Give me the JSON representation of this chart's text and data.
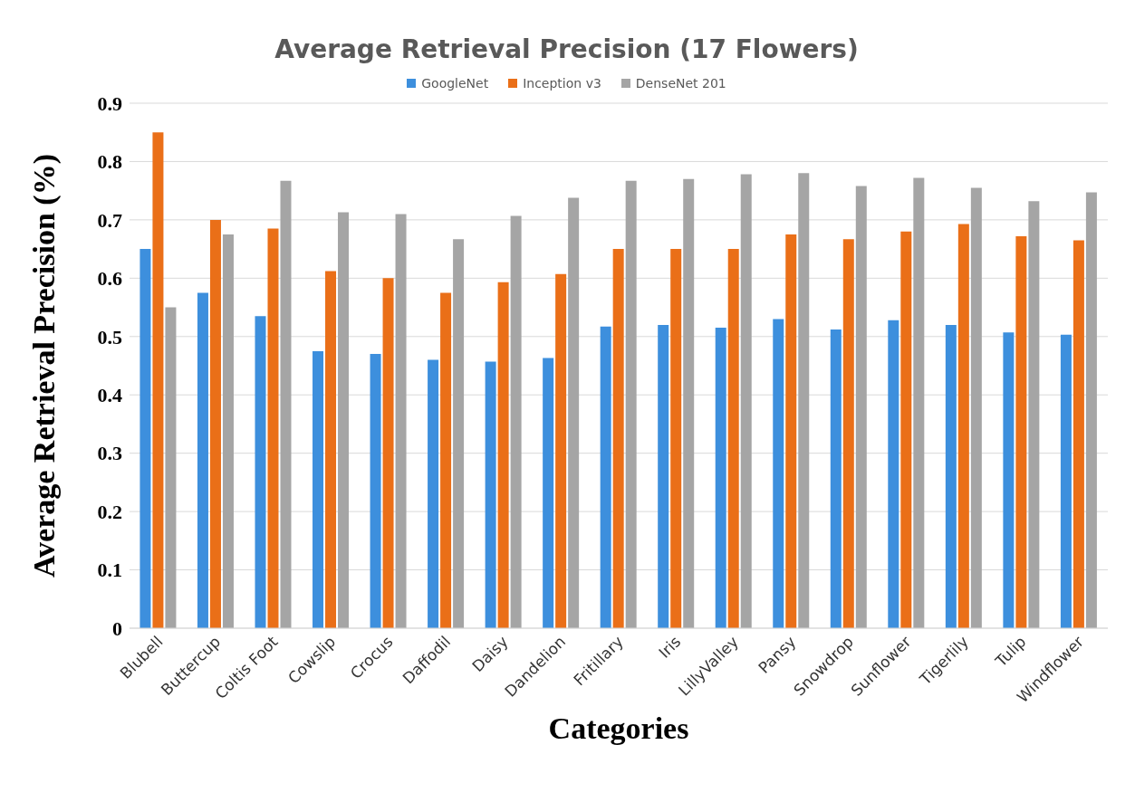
{
  "chart_data": {
    "type": "bar",
    "title": "Average Retrieval Precision (17 Flowers)",
    "xlabel": "Categories",
    "ylabel": "Average Retrieval Precision (%)",
    "categories": [
      "Blubell",
      "Buttercup",
      "Coltis Foot",
      "Cowslip",
      "Crocus",
      "Daffodil",
      "Daisy",
      "Dandelion",
      "Fritillary",
      "Iris",
      "LillyValley",
      "Pansy",
      "Snowdrop",
      "Sunflower",
      "Tigerlily",
      "Tulip",
      "Windflower"
    ],
    "series": [
      {
        "name": "GoogleNet",
        "color": "#3d8fdd",
        "values": [
          0.65,
          0.575,
          0.535,
          0.475,
          0.47,
          0.46,
          0.457,
          0.463,
          0.517,
          0.52,
          0.515,
          0.53,
          0.512,
          0.528,
          0.52,
          0.507,
          0.503
        ]
      },
      {
        "name": "Inception v3",
        "color": "#ea6f18",
        "values": [
          0.85,
          0.7,
          0.685,
          0.612,
          0.6,
          0.575,
          0.593,
          0.607,
          0.65,
          0.65,
          0.65,
          0.675,
          0.667,
          0.68,
          0.693,
          0.672,
          0.665
        ]
      },
      {
        "name": "DenseNet 201",
        "color": "#a5a5a5",
        "values": [
          0.55,
          0.675,
          0.767,
          0.713,
          0.71,
          0.667,
          0.707,
          0.738,
          0.767,
          0.77,
          0.778,
          0.78,
          0.758,
          0.772,
          0.755,
          0.732,
          0.747
        ]
      }
    ],
    "ylim": [
      0,
      0.9
    ],
    "yticks": [
      0,
      0.1,
      0.2,
      0.3,
      0.4,
      0.5,
      0.6,
      0.7,
      0.8,
      0.9
    ],
    "grid": "y",
    "legend": "top"
  }
}
